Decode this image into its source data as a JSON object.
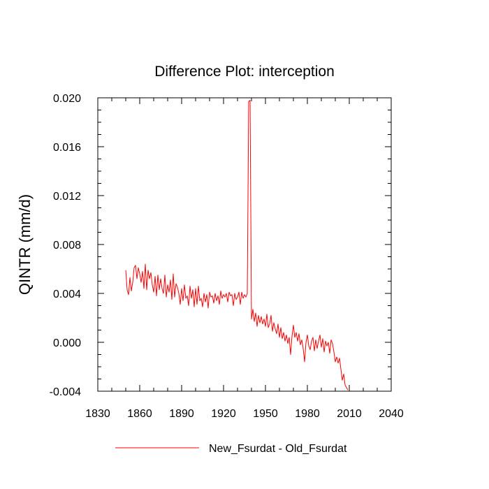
{
  "chart_data": {
    "type": "line",
    "title": "Difference Plot: interception",
    "xlabel": "",
    "ylabel": "QINTR  (mm/d)",
    "xlim": [
      1830,
      2040
    ],
    "ylim": [
      -0.004,
      0.02
    ],
    "x_ticks": [
      1830,
      1860,
      1890,
      1920,
      1950,
      1980,
      2010,
      2040
    ],
    "x_tick_labels": [
      "1830",
      "1860",
      "1890",
      "1920",
      "1950",
      "1980",
      "2010",
      "2040"
    ],
    "y_ticks": [
      -0.004,
      0.0,
      0.004,
      0.008,
      0.012,
      0.016,
      0.02
    ],
    "y_tick_labels": [
      "-0.004",
      "0.000",
      "0.004",
      "0.008",
      "0.012",
      "0.016",
      "0.020"
    ],
    "legend": {
      "location": "bottom-center"
    },
    "series": [
      {
        "name": "New_Fsurdat - Old_Fsurdat",
        "color": "#ff0000",
        "x_start": 1850,
        "x_step": 1,
        "values": [
          0.0059,
          0.0043,
          0.0039,
          0.0053,
          0.0042,
          0.0049,
          0.0061,
          0.0063,
          0.0052,
          0.0061,
          0.0056,
          0.0049,
          0.0058,
          0.0044,
          0.0064,
          0.0043,
          0.0059,
          0.0052,
          0.0057,
          0.0047,
          0.0041,
          0.0054,
          0.0038,
          0.0055,
          0.0043,
          0.0052,
          0.0044,
          0.004,
          0.0055,
          0.0037,
          0.0047,
          0.0041,
          0.0051,
          0.0035,
          0.0056,
          0.0037,
          0.0048,
          0.0045,
          0.004,
          0.0031,
          0.0044,
          0.0034,
          0.0047,
          0.0036,
          0.0038,
          0.003,
          0.0046,
          0.0036,
          0.0043,
          0.0029,
          0.0044,
          0.0031,
          0.0046,
          0.0034,
          0.0036,
          0.0029,
          0.004,
          0.0033,
          0.0039,
          0.0028,
          0.0041,
          0.0037,
          0.0038,
          0.0032,
          0.004,
          0.0034,
          0.0038,
          0.0031,
          0.0042,
          0.0036,
          0.0039,
          0.0037,
          0.004,
          0.0033,
          0.0041,
          0.0038,
          0.0039,
          0.003,
          0.004,
          0.0035,
          0.0037,
          0.0041,
          0.0031,
          0.0041,
          0.0036,
          0.0039,
          0.0037,
          0.004,
          0.0197,
          0.0198,
          0.0019,
          0.0027,
          0.0017,
          0.0024,
          0.0013,
          0.0022,
          0.0016,
          0.0021,
          0.0015,
          0.0019,
          0.0013,
          0.0023,
          0.0012,
          0.0015,
          0.0022,
          0.0009,
          0.0016,
          0.0011,
          0.0007,
          0.0015,
          0.0004,
          0.0012,
          0.0003,
          0.0008,
          0.0001,
          0.0006,
          -0.0001,
          0.0004,
          -0.001,
          0.0005,
          0.0014,
          0.0004,
          0.0008,
          0.0001,
          0.0007,
          -0.0002,
          0.0002,
          -0.0005,
          -0.0016,
          0.0,
          0.0006,
          -0.0003,
          -0.0006,
          0.0001,
          0.0004,
          -0.0007,
          0.0002,
          -0.0005,
          0.0001,
          0.0006,
          -0.0004,
          0.0003,
          -0.0008,
          0.0001,
          -0.0003,
          0.0,
          -0.0009,
          0.0002,
          -0.0001,
          -0.0008,
          -0.0016,
          -0.0012,
          -0.0017,
          -0.0013,
          -0.0022,
          -0.0031,
          -0.0026,
          -0.0035,
          -0.0037,
          -0.0039
        ]
      }
    ]
  }
}
